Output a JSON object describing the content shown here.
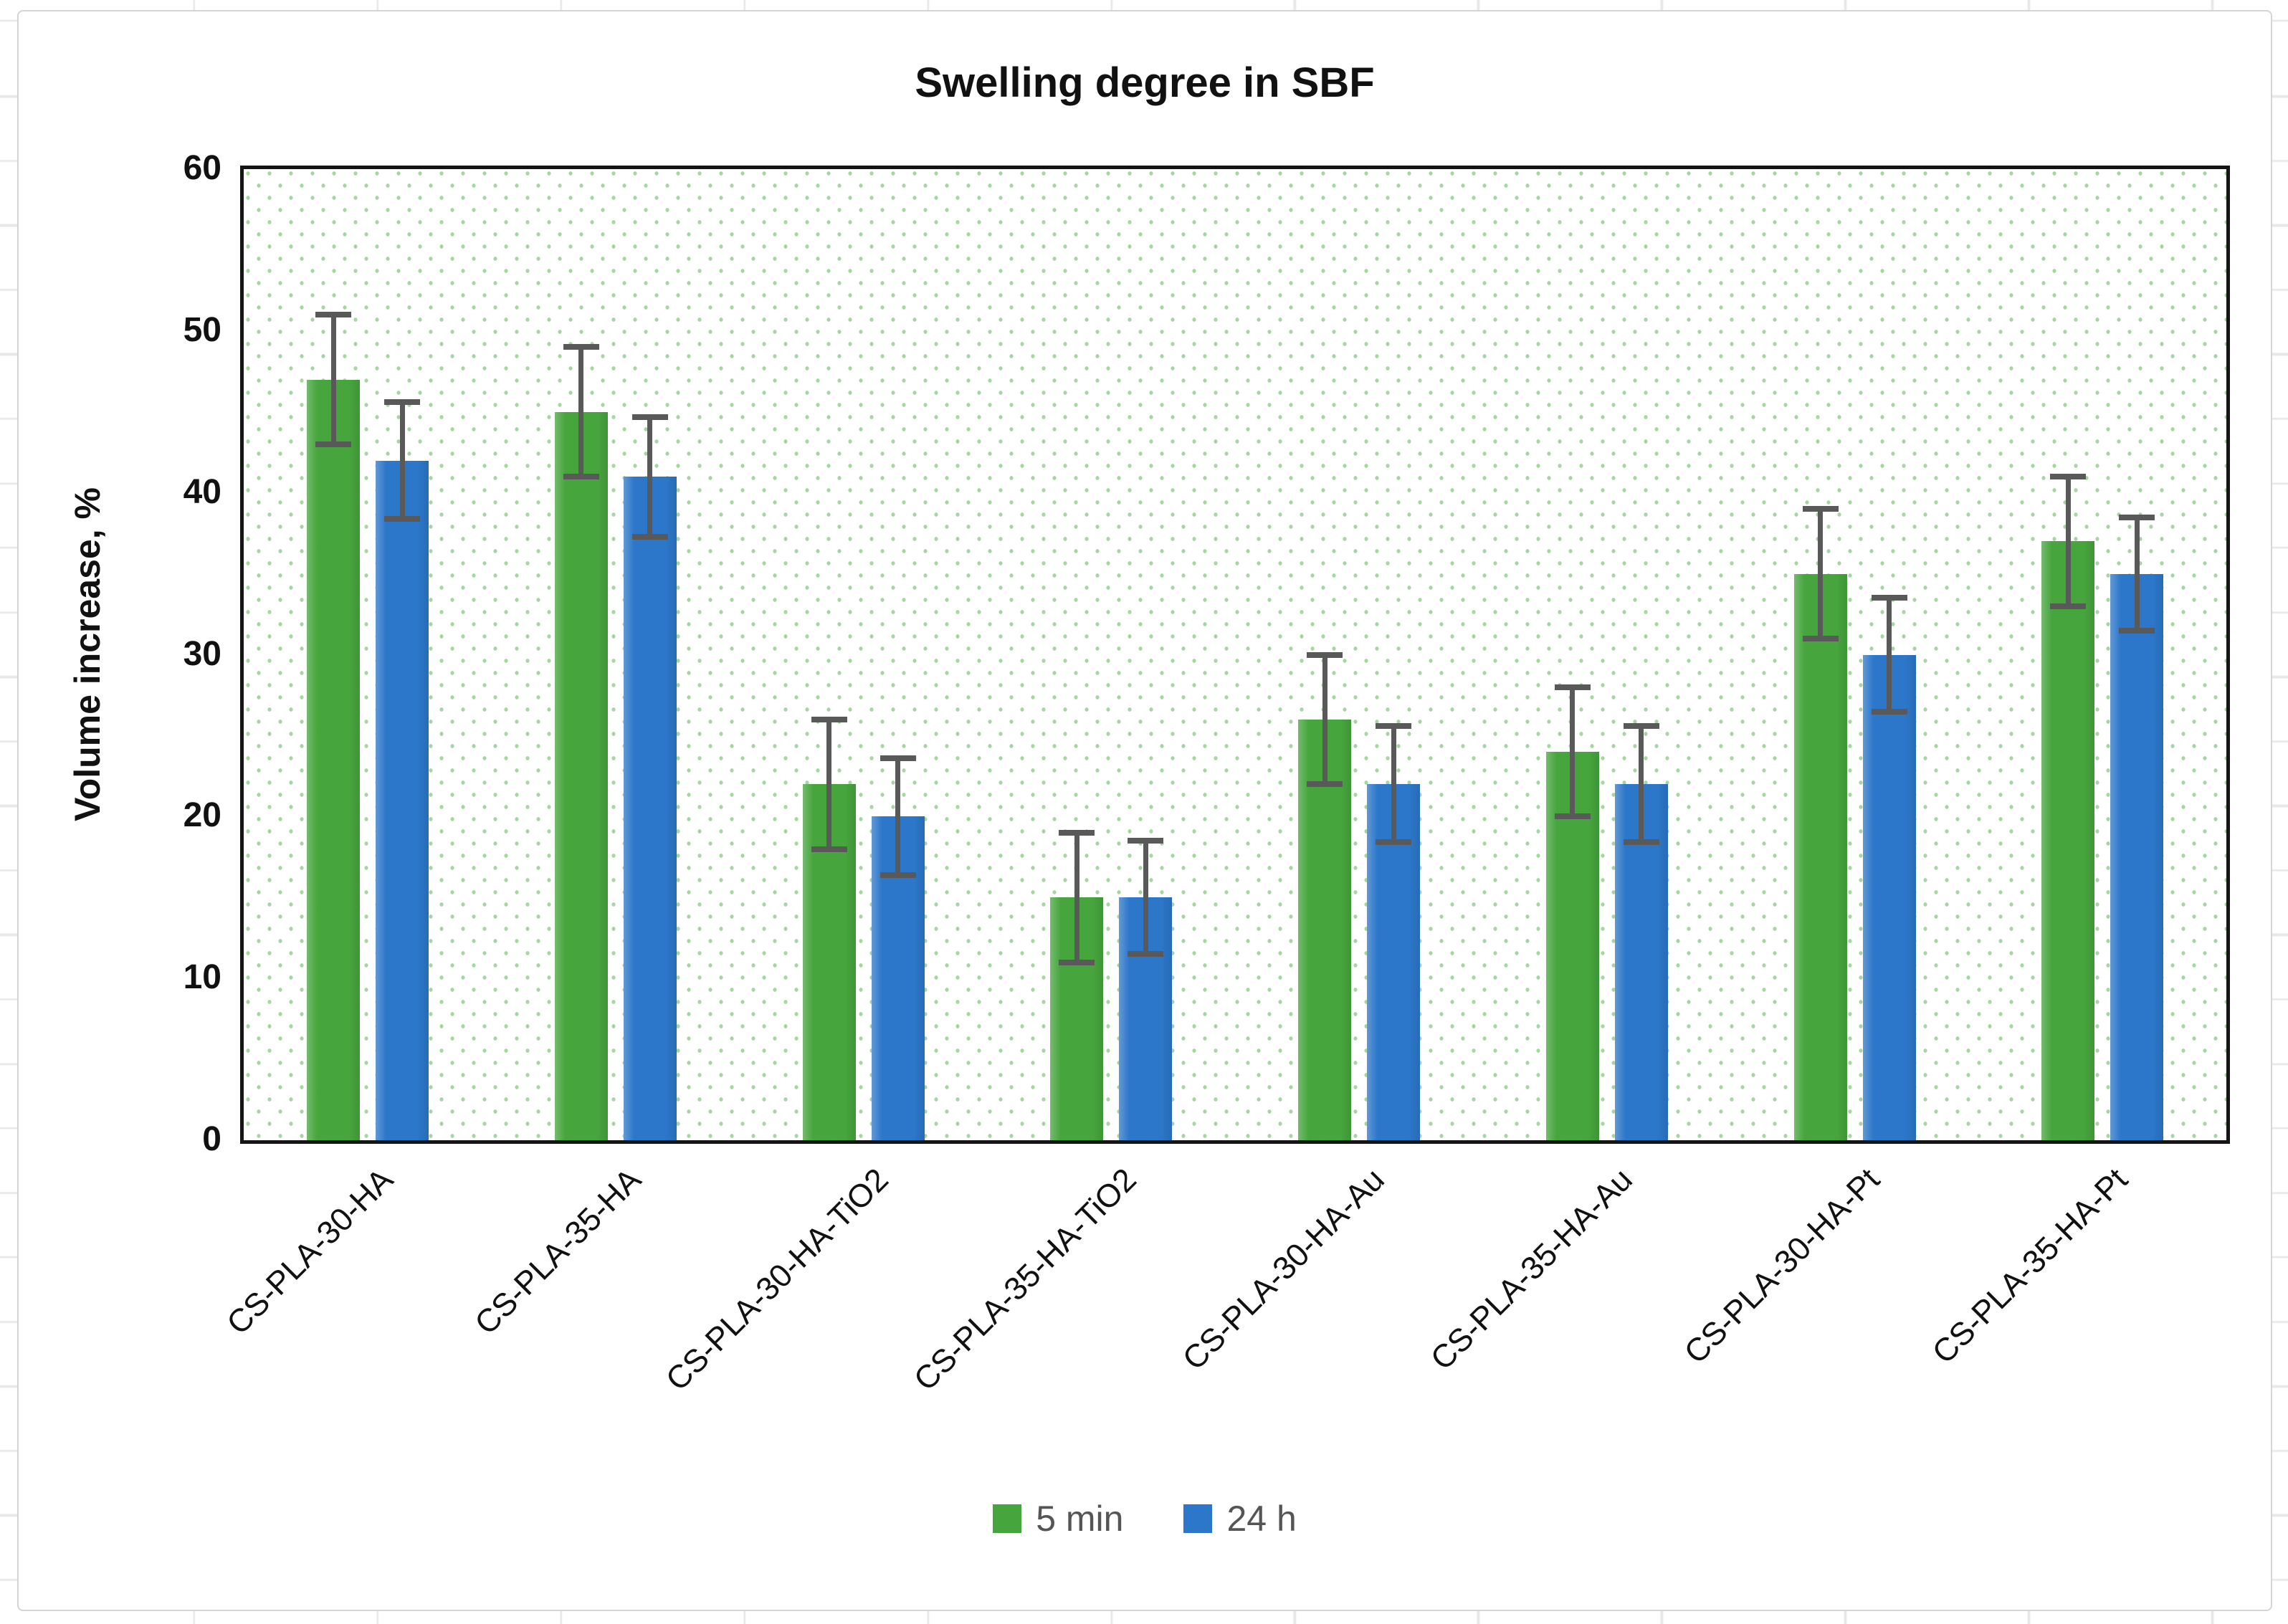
{
  "chart": {
    "title": "Swelling degree in SBF",
    "y_axis": {
      "title": "Volume increase, %",
      "min": 0,
      "max": 60,
      "tick_step": 10,
      "ticks": [
        "0",
        "10",
        "20",
        "30",
        "40",
        "50",
        "60"
      ]
    },
    "legend": [
      {
        "name": "5 min",
        "color": "#46A53D"
      },
      {
        "name": "24 h",
        "color": "#2C77C9"
      }
    ],
    "colors": {
      "plot_border": "#151515",
      "plot_dot_pattern": "#A6D7A0",
      "error_bar": "#595959",
      "chart_frame": "#D5D5D5",
      "sheet_gridline": "#E8E8E8"
    }
  },
  "chart_data": {
    "type": "bar",
    "title": "Swelling degree in SBF",
    "xlabel": "",
    "ylabel": "Volume increase, %",
    "ylim": [
      0,
      60
    ],
    "grid": false,
    "legend_position": "bottom",
    "plot_background": "white with light-green dot pattern fill",
    "categories": [
      "CS-PLA-30-HA",
      "CS-PLA-35-HA",
      "CS-PLA-30-HA-TiO2",
      "CS-PLA-35-HA-TiO2",
      "CS-PLA-30-HA-Au",
      "CS-PLA-35-HA-Au",
      "CS-PLA-30-HA-Pt",
      "CS-PLA-35-HA-Pt"
    ],
    "series": [
      {
        "name": "5 min",
        "color": "#46A53D",
        "values": [
          47,
          45,
          22,
          15,
          26,
          24,
          35,
          37
        ],
        "error_bars": [
          4,
          4,
          4,
          4,
          4,
          4,
          4,
          4
        ]
      },
      {
        "name": "24 h",
        "color": "#2C77C9",
        "values": [
          42,
          41,
          20,
          15,
          22,
          22,
          30,
          35
        ],
        "error_bars": [
          3.6,
          3.7,
          3.6,
          3.5,
          3.6,
          3.6,
          3.5,
          3.5
        ]
      }
    ]
  }
}
